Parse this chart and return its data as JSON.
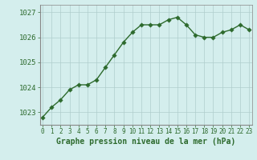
{
  "x": [
    0,
    1,
    2,
    3,
    4,
    5,
    6,
    7,
    8,
    9,
    10,
    11,
    12,
    13,
    14,
    15,
    16,
    17,
    18,
    19,
    20,
    21,
    22,
    23
  ],
  "y": [
    1022.8,
    1023.2,
    1023.5,
    1023.9,
    1024.1,
    1024.1,
    1024.3,
    1024.8,
    1025.3,
    1025.8,
    1026.2,
    1026.5,
    1026.5,
    1026.5,
    1026.7,
    1026.8,
    1026.5,
    1026.1,
    1026.0,
    1026.0,
    1026.2,
    1026.3,
    1026.5,
    1026.3
  ],
  "line_color": "#2d6a2d",
  "marker_color": "#2d6a2d",
  "bg_color": "#d4eeed",
  "grid_color": "#b0cecc",
  "axis_label_color": "#2d6a2d",
  "tick_color": "#2d6a2d",
  "spine_color": "#888888",
  "xlabel": "Graphe pression niveau de la mer (hPa)",
  "ylim": [
    1022.5,
    1027.3
  ],
  "yticks": [
    1023,
    1024,
    1025,
    1026,
    1027
  ],
  "xticks": [
    0,
    1,
    2,
    3,
    4,
    5,
    6,
    7,
    8,
    9,
    10,
    11,
    12,
    13,
    14,
    15,
    16,
    17,
    18,
    19,
    20,
    21,
    22,
    23
  ],
  "xlabel_fontsize": 7,
  "ytick_fontsize": 6.5,
  "xtick_fontsize": 5.5,
  "marker_size": 2.8,
  "line_width": 1.0
}
